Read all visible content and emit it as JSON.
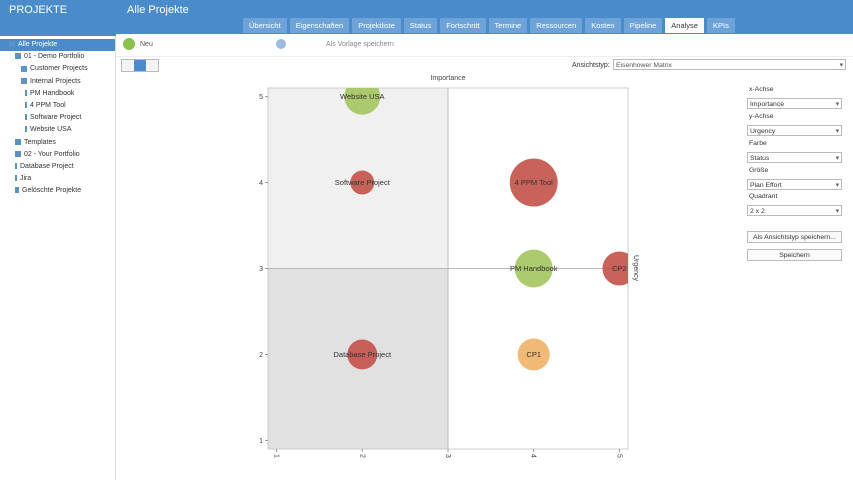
{
  "header": {
    "sidebar_title": "PROJEKTE",
    "page_title": "Alle Projekte"
  },
  "tabs": [
    "Übersicht",
    "Eigenschaften",
    "Projektliste",
    "Status",
    "Fortschritt",
    "Termine",
    "Ressourcen",
    "Kosten",
    "Pipeline",
    "Analyse",
    "KPIs"
  ],
  "tree": [
    "Alle Projekte",
    "01 - Demo Portfolio",
    "Customer Projects",
    "Internal Projects",
    "PM Handbook",
    "4 PPM Tool",
    "Software Project",
    "Website USA",
    "Templates",
    "02 - Your Portfolio",
    "Database Project",
    "Jira",
    "Gelöschte Projekte"
  ],
  "toolbar": {
    "new": "Neu",
    "save_template": "Als Vorlage speichern",
    "view_label": "Ansichtstyp:",
    "view_value": "Eisenhower Matrix"
  },
  "panel": {
    "fields": [
      {
        "label": "x-Achse",
        "value": "Importance"
      },
      {
        "label": "y-Achse",
        "value": "Urgency"
      },
      {
        "label": "Farbe",
        "value": "Status"
      },
      {
        "label": "Größe",
        "value": "Plan Effort"
      },
      {
        "label": "Quadrant",
        "value": "2 x 2"
      }
    ],
    "buttons": [
      "Als Ansichtstyp speichern...",
      "Speichern"
    ]
  },
  "chart_data": {
    "type": "bubble",
    "x_label": "Importance",
    "y_label": "Urgency",
    "labels": [
      "Website USA",
      "Software Project",
      "4 PPM Tool",
      "PM Handbook",
      "CP2",
      "Database Project",
      "CP1"
    ],
    "x": [
      2,
      2,
      4,
      4,
      5,
      2,
      4
    ],
    "values": [
      5,
      4,
      4,
      3,
      3,
      2,
      2
    ],
    "sizes": [
      18,
      12,
      24,
      19,
      17,
      15,
      16
    ],
    "colors": [
      "#a3c45e",
      "#c4514a",
      "#c4514a",
      "#a3c45e",
      "#c4514a",
      "#c4514a",
      "#efb167"
    ],
    "xlim": [
      0.9,
      5.1
    ],
    "ylim": [
      0.9,
      5.1
    ],
    "xticks": [
      1,
      2,
      3,
      4,
      5
    ],
    "yticks": [
      1,
      2,
      3,
      4,
      5
    ]
  }
}
